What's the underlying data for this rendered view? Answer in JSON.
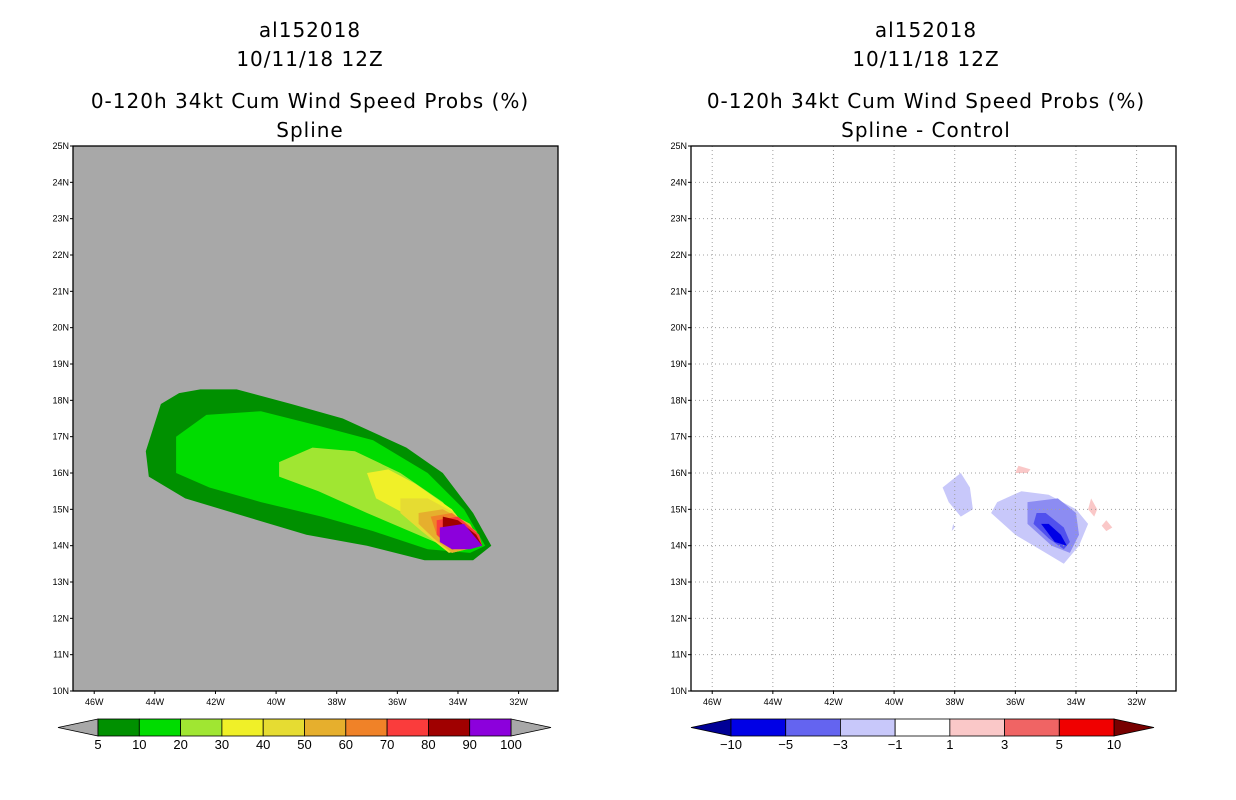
{
  "chart_data": [
    {
      "type": "filled-contour",
      "title_lines": [
        "al152018",
        "10/11/18 12Z",
        "0-120h 34kt Cum Wind Speed Probs (%)",
        "Spline"
      ],
      "x_ticks": [
        "46W",
        "44W",
        "42W",
        "40W",
        "38W",
        "36W",
        "34W",
        "32W"
      ],
      "y_ticks": [
        "10N",
        "11N",
        "12N",
        "13N",
        "14N",
        "15N",
        "16N",
        "17N",
        "18N",
        "19N",
        "20N",
        "21N",
        "22N",
        "23N",
        "24N",
        "25N"
      ],
      "xlim_lon": [
        -46.7,
        -30.7
      ],
      "ylim_lat": [
        10,
        25
      ],
      "background": "#a8a8a8",
      "grid": false,
      "colorbar": {
        "levels": [
          "5",
          "10",
          "20",
          "30",
          "40",
          "50",
          "60",
          "70",
          "80",
          "90",
          "100"
        ],
        "colors": [
          "#009000",
          "#00dc00",
          "#a0e632",
          "#f0f028",
          "#e6dc32",
          "#e6af2d",
          "#f08228",
          "#fa3c3c",
          "#a00000",
          "#8c00dc"
        ],
        "under_color": "#a8a8a8",
        "over_color": "#a8a8a8"
      },
      "contours": [
        {
          "level": 5,
          "points": [
            [
              -43.8,
              17.9
            ],
            [
              -43.2,
              18.2
            ],
            [
              -42.5,
              18.3
            ],
            [
              -41.3,
              18.3
            ],
            [
              -39.5,
              17.9
            ],
            [
              -37.8,
              17.5
            ],
            [
              -35.7,
              16.7
            ],
            [
              -34.5,
              16.0
            ],
            [
              -33.5,
              14.9
            ],
            [
              -32.9,
              14.0
            ],
            [
              -33.5,
              13.6
            ],
            [
              -35.1,
              13.6
            ],
            [
              -37.0,
              14.0
            ],
            [
              -39.0,
              14.3
            ],
            [
              -41.0,
              14.8
            ],
            [
              -43.0,
              15.3
            ],
            [
              -44.2,
              15.9
            ],
            [
              -44.3,
              16.6
            ]
          ]
        },
        {
          "level": 10,
          "points": [
            [
              -43.3,
              17.0
            ],
            [
              -42.3,
              17.6
            ],
            [
              -40.5,
              17.7
            ],
            [
              -38.6,
              17.3
            ],
            [
              -36.8,
              16.9
            ],
            [
              -35.0,
              16.0
            ],
            [
              -33.8,
              15.0
            ],
            [
              -33.1,
              14.0
            ],
            [
              -33.6,
              13.8
            ],
            [
              -35.0,
              13.9
            ],
            [
              -36.8,
              14.4
            ],
            [
              -38.5,
              14.8
            ],
            [
              -40.5,
              15.2
            ],
            [
              -42.2,
              15.6
            ],
            [
              -43.3,
              16.0
            ]
          ]
        },
        {
          "level": 20,
          "points": [
            [
              -39.9,
              16.3
            ],
            [
              -38.8,
              16.7
            ],
            [
              -37.4,
              16.6
            ],
            [
              -35.9,
              16.0
            ],
            [
              -34.5,
              15.2
            ],
            [
              -33.3,
              14.0
            ],
            [
              -34.2,
              13.9
            ],
            [
              -35.6,
              14.4
            ],
            [
              -37.0,
              14.9
            ],
            [
              -38.6,
              15.5
            ],
            [
              -39.9,
              15.9
            ]
          ]
        },
        {
          "level": 30,
          "points": [
            [
              -37.0,
              16.0
            ],
            [
              -36.3,
              16.1
            ],
            [
              -35.4,
              15.7
            ],
            [
              -34.2,
              15.0
            ],
            [
              -33.3,
              14.0
            ],
            [
              -34.2,
              13.8
            ],
            [
              -35.0,
              14.3
            ],
            [
              -35.8,
              14.9
            ],
            [
              -36.7,
              15.3
            ]
          ]
        },
        {
          "level": 40,
          "points": [
            [
              -35.9,
              15.3
            ],
            [
              -35.0,
              15.3
            ],
            [
              -34.1,
              14.9
            ],
            [
              -33.3,
              14.0
            ],
            [
              -34.3,
              13.8
            ],
            [
              -35.2,
              14.4
            ],
            [
              -35.9,
              14.9
            ]
          ]
        },
        {
          "level": 50,
          "points": [
            [
              -35.3,
              14.9
            ],
            [
              -34.5,
              15.0
            ],
            [
              -33.6,
              14.6
            ],
            [
              -33.2,
              14.0
            ],
            [
              -34.2,
              13.8
            ],
            [
              -34.8,
              14.2
            ],
            [
              -35.3,
              14.6
            ]
          ]
        },
        {
          "level": 60,
          "points": [
            [
              -34.9,
              14.8
            ],
            [
              -34.2,
              14.9
            ],
            [
              -33.4,
              14.4
            ],
            [
              -33.2,
              14.0
            ],
            [
              -34.2,
              13.9
            ],
            [
              -34.7,
              14.3
            ]
          ]
        },
        {
          "level": 70,
          "points": [
            [
              -34.7,
              14.7
            ],
            [
              -34.0,
              14.8
            ],
            [
              -33.3,
              14.3
            ],
            [
              -33.2,
              14.0
            ],
            [
              -34.2,
              13.9
            ],
            [
              -34.7,
              14.3
            ]
          ]
        },
        {
          "level": 80,
          "points": [
            [
              -34.5,
              14.8
            ],
            [
              -34.0,
              14.7
            ],
            [
              -33.4,
              14.3
            ],
            [
              -33.2,
              14.0
            ],
            [
              -34.2,
              13.9
            ],
            [
              -34.5,
              14.4
            ]
          ]
        },
        {
          "level": 90,
          "points": [
            [
              -34.6,
              14.5
            ],
            [
              -33.8,
              14.6
            ],
            [
              -33.2,
              14.0
            ],
            [
              -33.6,
              13.9
            ],
            [
              -34.2,
              13.9
            ],
            [
              -34.6,
              14.1
            ]
          ]
        }
      ]
    },
    {
      "type": "filled-contour",
      "title_lines": [
        "al152018",
        "10/11/18 12Z",
        "0-120h 34kt Cum Wind Speed Probs (%)",
        "Spline - Control"
      ],
      "x_ticks": [
        "46W",
        "44W",
        "42W",
        "40W",
        "38W",
        "36W",
        "34W",
        "32W"
      ],
      "y_ticks": [
        "10N",
        "11N",
        "12N",
        "13N",
        "14N",
        "15N",
        "16N",
        "17N",
        "18N",
        "19N",
        "20N",
        "21N",
        "22N",
        "23N",
        "24N",
        "25N"
      ],
      "xlim_lon": [
        -46.7,
        -30.7
      ],
      "ylim_lat": [
        10,
        25
      ],
      "background": "#ffffff",
      "grid": true,
      "colorbar": {
        "levels": [
          "-10",
          "-5",
          "-3",
          "-1",
          "1",
          "3",
          "5",
          "10"
        ],
        "colors": [
          "#0000e6",
          "#6464f0",
          "#c8c8fa",
          "#ffffff",
          "#fac8c8",
          "#f06464",
          "#f00000"
        ],
        "under_color": "#000096",
        "over_color": "#780000"
      },
      "contours": [
        {
          "level": -1,
          "points": [
            [
              -37.8,
              16.0
            ],
            [
              -37.5,
              15.6
            ],
            [
              -37.4,
              15.0
            ],
            [
              -37.8,
              14.8
            ],
            [
              -38.2,
              15.2
            ],
            [
              -38.4,
              15.6
            ]
          ]
        },
        {
          "level": -1,
          "points": [
            [
              -38.1,
              14.4
            ],
            [
              -38.0,
              14.5
            ],
            [
              -38.05,
              14.6
            ]
          ]
        },
        {
          "level": -1,
          "points": [
            [
              -36.6,
              15.2
            ],
            [
              -35.8,
              15.5
            ],
            [
              -34.9,
              15.4
            ],
            [
              -34.0,
              15.0
            ],
            [
              -33.6,
              14.6
            ],
            [
              -33.9,
              14.0
            ],
            [
              -34.4,
              13.5
            ],
            [
              -35.0,
              13.8
            ],
            [
              -36.0,
              14.3
            ],
            [
              -36.8,
              14.9
            ]
          ]
        },
        {
          "level": -3,
          "points": [
            [
              -35.6,
              15.2
            ],
            [
              -34.6,
              15.3
            ],
            [
              -34.0,
              14.9
            ],
            [
              -33.9,
              14.3
            ],
            [
              -34.2,
              13.8
            ],
            [
              -34.8,
              14.0
            ],
            [
              -35.6,
              14.6
            ]
          ]
        },
        {
          "level": -5,
          "points": [
            [
              -35.3,
              14.9
            ],
            [
              -35.0,
              14.9
            ],
            [
              -34.4,
              14.5
            ],
            [
              -34.2,
              14.1
            ],
            [
              -34.4,
              13.9
            ],
            [
              -34.9,
              14.2
            ],
            [
              -35.4,
              14.6
            ]
          ]
        },
        {
          "level": -10,
          "points": [
            [
              -35.15,
              14.6
            ],
            [
              -34.9,
              14.6
            ],
            [
              -34.5,
              14.3
            ],
            [
              -34.3,
              14.0
            ],
            [
              -34.7,
              14.1
            ]
          ]
        },
        {
          "level": 1,
          "points": [
            [
              -35.9,
              16.2
            ],
            [
              -35.5,
              16.1
            ],
            [
              -35.6,
              16.0
            ],
            [
              -36.0,
              16.0
            ]
          ]
        },
        {
          "level": 1,
          "points": [
            [
              -33.5,
              15.3
            ],
            [
              -33.3,
              15.0
            ],
            [
              -33.4,
              14.8
            ],
            [
              -33.6,
              15.0
            ]
          ]
        },
        {
          "level": 1,
          "points": [
            [
              -33.0,
              14.7
            ],
            [
              -32.8,
              14.5
            ],
            [
              -33.0,
              14.4
            ],
            [
              -33.15,
              14.55
            ]
          ]
        }
      ]
    }
  ]
}
